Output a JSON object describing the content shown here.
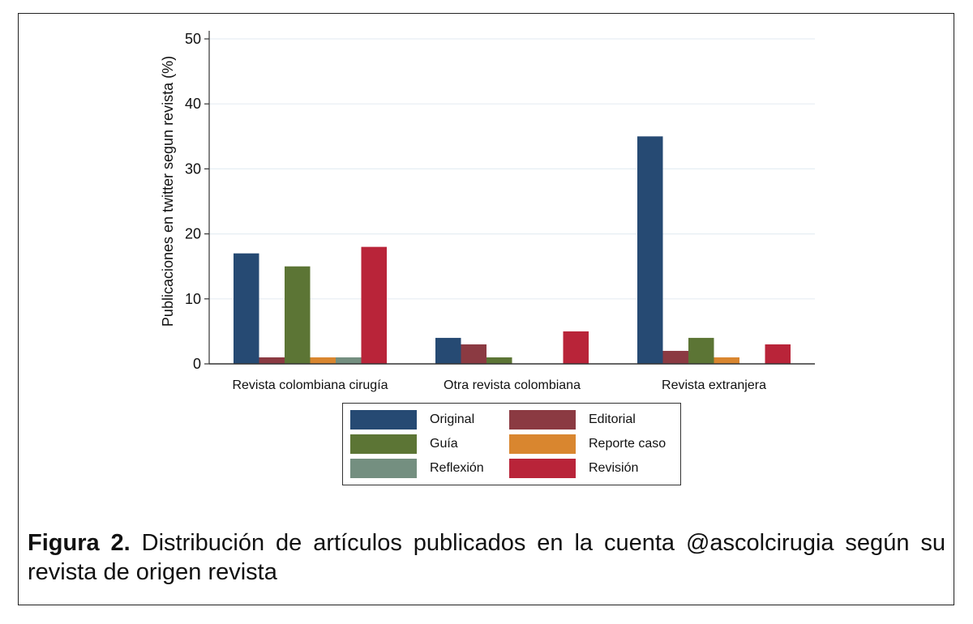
{
  "chart_data": {
    "type": "bar",
    "categories": [
      "Revista colombiana cirugía",
      "Otra revista colombiana",
      "Revista extranjera"
    ],
    "series": [
      {
        "name": "Original",
        "color": "#264a73",
        "values": [
          17,
          4,
          35
        ]
      },
      {
        "name": "Editorial",
        "color": "#8b3a42",
        "values": [
          1,
          3,
          2
        ]
      },
      {
        "name": "Guía",
        "color": "#5c7535",
        "values": [
          15,
          1,
          4
        ]
      },
      {
        "name": "Reporte caso",
        "color": "#d9862f",
        "values": [
          1,
          0,
          1
        ]
      },
      {
        "name": "Reflexión",
        "color": "#748f80",
        "values": [
          1,
          0,
          0
        ]
      },
      {
        "name": "Revisión",
        "color": "#b92439",
        "values": [
          18,
          5,
          3
        ]
      }
    ],
    "ylabel": "Publicaciones en twitter segun revista (%)",
    "xlabel": "",
    "ylim": [
      0,
      50
    ],
    "yticks": [
      0,
      10,
      20,
      30,
      40,
      50
    ],
    "grid": true,
    "legend_position": "bottom"
  },
  "caption": {
    "label": "Figura 2.",
    "text": " Distribución de artículos publicados en la cuenta @ascolcirugia según su revista de origen revista"
  }
}
